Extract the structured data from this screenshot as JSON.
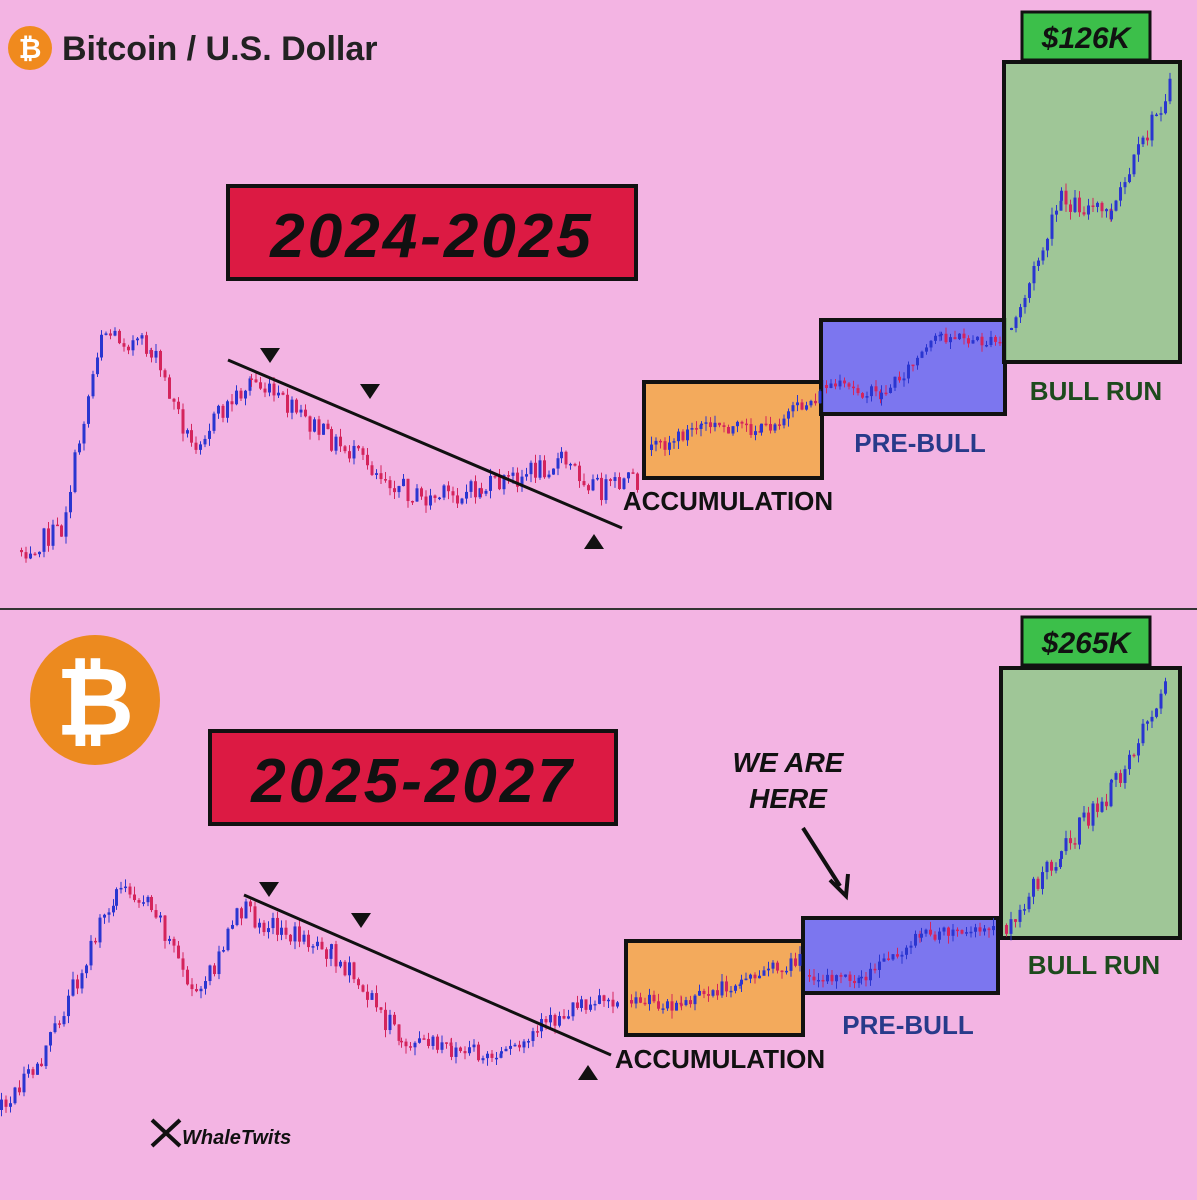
{
  "header": {
    "title": "Bitcoin / U.S. Dollar"
  },
  "panels": [
    {
      "period": "2024-2025",
      "price": "$126K",
      "phases": [
        "ACCUMULATION",
        "PRE-BULL",
        "BULL RUN"
      ]
    },
    {
      "period": "2025-2027",
      "price": "$265K",
      "phases": [
        "ACCUMULATION",
        "PRE-BULL",
        "BULL RUN"
      ],
      "note": [
        "WE ARE",
        "HERE"
      ]
    }
  ],
  "watermark": "WhaleTwits"
}
